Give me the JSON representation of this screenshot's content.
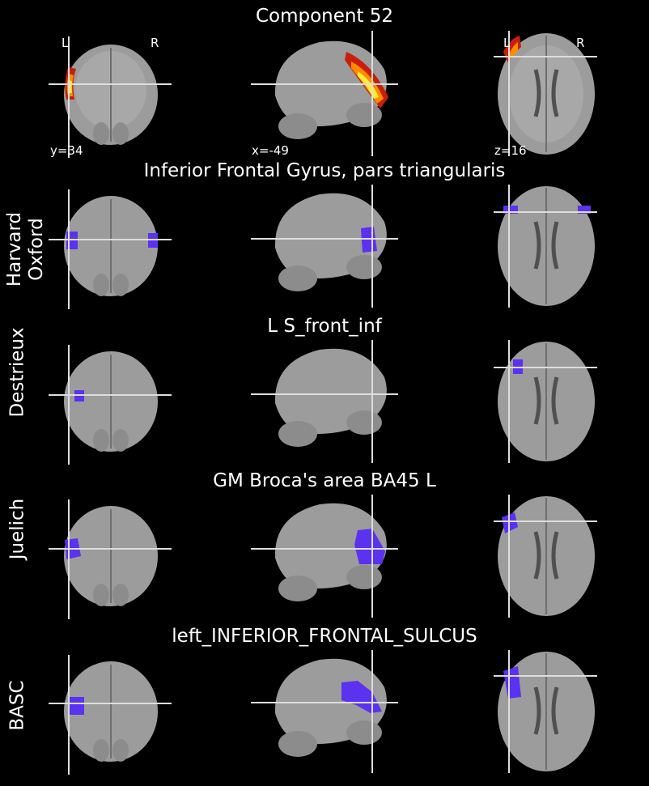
{
  "colors": {
    "background": "#000000",
    "brain_gray": "#9c9c9c",
    "crosshair": "#dddddd",
    "atlas_blue": "#5a32f0",
    "heat_red": "#c81e0a",
    "heat_orange": "#ff8c00",
    "heat_yellow": "#ffee33"
  },
  "component": {
    "title": "Component 52",
    "orientation": {
      "left": "L",
      "right": "R"
    },
    "coords": {
      "y": "y=34",
      "x": "x=-49",
      "z": "z=16"
    }
  },
  "atlases": [
    {
      "name": "Harvard\nOxford",
      "region": "Inferior Frontal Gyrus, pars triangularis"
    },
    {
      "name": "Destrieux",
      "region": "L S_front_inf"
    },
    {
      "name": "Juelich",
      "region": "GM Broca's area BA45 L"
    },
    {
      "name": "BASC",
      "region": "left_INFERIOR_FRONTAL_SULCUS"
    }
  ]
}
